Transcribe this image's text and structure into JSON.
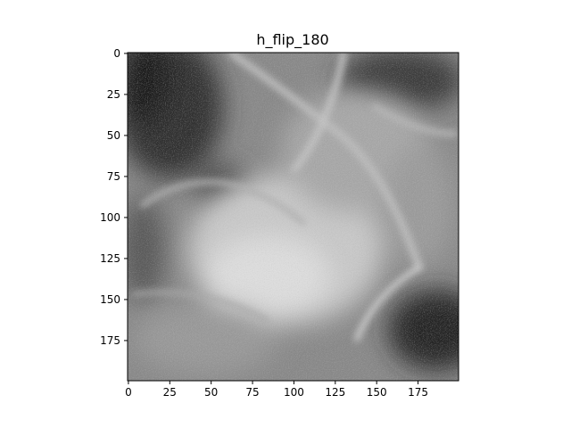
{
  "figure": {
    "title": "h_flip_180",
    "colormap": "gray",
    "image_size": [
      200,
      200
    ],
    "x_ticks": [
      0,
      25,
      50,
      75,
      100,
      125,
      150,
      175
    ],
    "y_ticks": [
      0,
      25,
      50,
      75,
      100,
      125,
      150,
      175
    ],
    "tick_color": "#000000",
    "background_color": "#ffffff"
  }
}
